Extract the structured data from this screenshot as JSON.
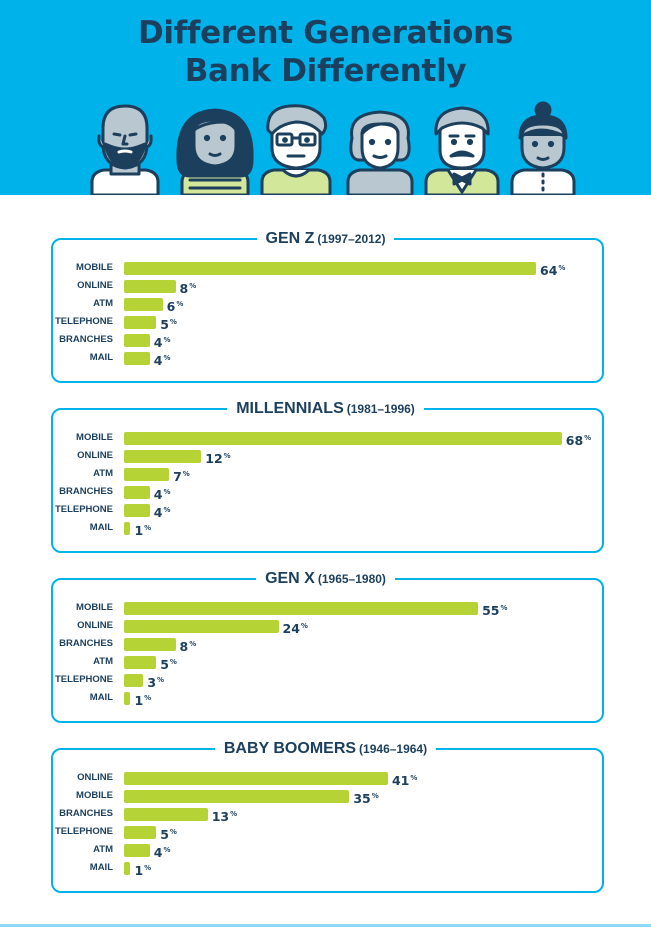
{
  "title_line1": "Different Generations",
  "title_line2": "Bank Differently",
  "colors": {
    "header_bg": "#00b2ea",
    "title": "#1b3f5c",
    "bar": "#b5d334",
    "panel_border": "#00b2ea"
  },
  "illustration": {
    "icons": [
      "bald-man-beard-icon",
      "woman-long-hair-icon",
      "man-glasses-icon",
      "older-woman-icon",
      "man-mustache-icon",
      "woman-bun-icon"
    ]
  },
  "chart_data": [
    {
      "type": "bar",
      "orientation": "horizontal",
      "title": "GEN Z",
      "subtitle": "(1997–2012)",
      "categories": [
        "MOBILE",
        "ONLINE",
        "ATM",
        "TELEPHONE",
        "BRANCHES",
        "MAIL"
      ],
      "values": [
        64,
        8,
        6,
        5,
        4,
        4
      ],
      "value_suffix": "%"
    },
    {
      "type": "bar",
      "orientation": "horizontal",
      "title": "MILLENNIALS",
      "subtitle": "(1981–1996)",
      "categories": [
        "MOBILE",
        "ONLINE",
        "ATM",
        "BRANCHES",
        "TELEPHONE",
        "MAIL"
      ],
      "values": [
        68,
        12,
        7,
        4,
        4,
        1
      ],
      "value_suffix": "%"
    },
    {
      "type": "bar",
      "orientation": "horizontal",
      "title": "GEN X",
      "subtitle": "(1965–1980)",
      "categories": [
        "MOBILE",
        "ONLINE",
        "BRANCHES",
        "ATM",
        "TELEPHONE",
        "MAIL"
      ],
      "values": [
        55,
        24,
        8,
        5,
        3,
        1
      ],
      "value_suffix": "%"
    },
    {
      "type": "bar",
      "orientation": "horizontal",
      "title": "BABY BOOMERS",
      "subtitle": "(1946–1964)",
      "categories": [
        "ONLINE",
        "MOBILE",
        "BRANCHES",
        "TELEPHONE",
        "ATM",
        "MAIL"
      ],
      "values": [
        41,
        35,
        13,
        5,
        4,
        1
      ],
      "value_suffix": "%"
    }
  ]
}
